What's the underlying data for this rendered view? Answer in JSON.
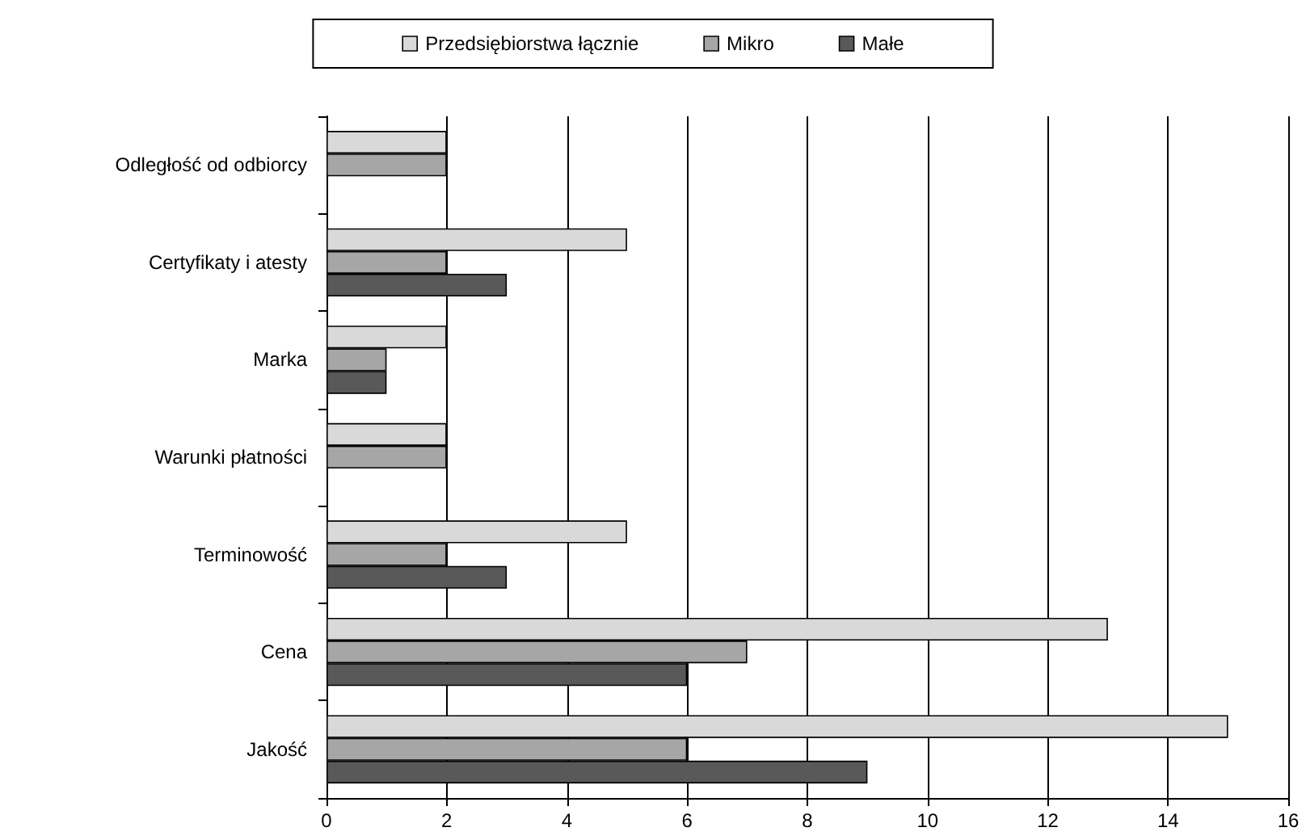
{
  "chart_data": {
    "type": "bar",
    "orientation": "horizontal",
    "categories": [
      "Odległość od odbiorcy",
      "Certyfikaty i atesty",
      "Marka",
      "Warunki płatności",
      "Terminowość",
      "Cena",
      "Jakość"
    ],
    "series": [
      {
        "name": "Przedsiębiorstwa łącznie",
        "color": "#d9d9d9",
        "values": [
          2,
          5,
          2,
          2,
          5,
          13,
          15
        ]
      },
      {
        "name": "Mikro",
        "color": "#a6a6a6",
        "values": [
          2,
          2,
          1,
          2,
          2,
          7,
          6
        ]
      },
      {
        "name": "Małe",
        "color": "#595959",
        "values": [
          null,
          3,
          1,
          null,
          3,
          6,
          9
        ]
      }
    ],
    "xlim": [
      0,
      16
    ],
    "xticks": [
      0,
      2,
      4,
      6,
      8,
      10,
      12,
      14,
      16
    ],
    "grid": "x",
    "legend": "top"
  }
}
